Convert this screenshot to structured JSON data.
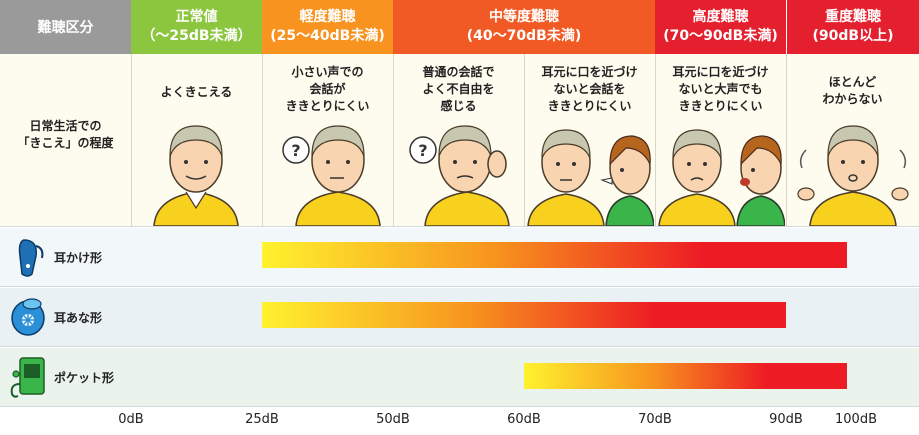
{
  "header": {
    "category_label": "難聴区分",
    "columns": [
      {
        "title": "正常値",
        "range": "（～25dB未満）",
        "color": "#8cc63f"
      },
      {
        "title": "軽度難聴",
        "range": "(25～40dB未満)",
        "color": "#f7931e"
      },
      {
        "title": "中等度難聴",
        "range": "(40～70dB未満)",
        "color": "#f15a24"
      },
      {
        "title": "高度難聴",
        "range": "(70～90dB未満)",
        "color": "#e5202e"
      },
      {
        "title": "重度難聴",
        "range": "(90dB以上)",
        "color": "#e5202e"
      }
    ]
  },
  "daily_life": {
    "label_line1": "日常生活での",
    "label_line2": "「きこえ」の程度",
    "descriptions": [
      {
        "lines": [
          "よくきこえる"
        ]
      },
      {
        "lines": [
          "小さい声での",
          "会話が",
          "ききとりにくい"
        ]
      },
      {
        "lines": [
          "普通の会話で",
          "よく不自由を",
          "感じる"
        ]
      },
      {
        "lines": [
          "耳元に口を近づけ",
          "ないと会話を",
          "ききとりにくい"
        ]
      },
      {
        "lines": [
          "耳元に口を近づけ",
          "ないと大声でも",
          "ききとりにくい"
        ]
      },
      {
        "lines": [
          "ほとんど",
          "わからない"
        ]
      }
    ]
  },
  "hearing_aids": [
    {
      "label": "耳かけ形",
      "icon": "behind-the-ear-hearing-aid-icon",
      "from_db": 25,
      "to_db": 100
    },
    {
      "label": "耳あな形",
      "icon": "in-the-ear-hearing-aid-icon",
      "from_db": 25,
      "to_db": 90
    },
    {
      "label": "ポケット形",
      "icon": "pocket-hearing-aid-icon",
      "from_db": 60,
      "to_db": 100
    }
  ],
  "axis": {
    "ticks": [
      "0dB",
      "25dB",
      "50dB",
      "60dB",
      "70dB",
      "90dB",
      "100dB"
    ]
  },
  "colors": {
    "gradient_start": "#fff22e",
    "gradient_mid": "#f7931e",
    "gradient_end": "#ed1c24",
    "row_bg_1": "#f2f8fa",
    "row_bg_2": "#e9f1f5",
    "row_bg_3": "#eaf3ec",
    "skin": "#f9d4b0",
    "hair": "#c8c8b0",
    "shirt": "#f7d11e"
  }
}
